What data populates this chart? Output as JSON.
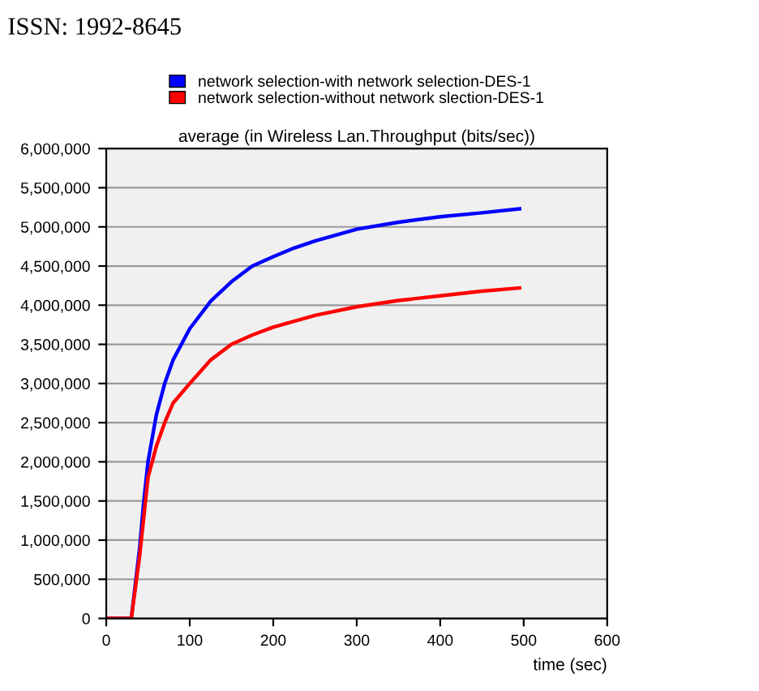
{
  "chart_data": {
    "type": "line",
    "title": "average (in Wireless Lan.Throughput (bits/sec))",
    "xlabel": "time (sec)",
    "annotations": [
      "ISSN: 1992-8645"
    ],
    "series": [
      {
        "name": "network selection-with network selection-DES-1",
        "color": "#0000ff",
        "x": [
          0,
          30,
          40,
          45,
          50,
          60,
          70,
          80,
          100,
          125,
          150,
          175,
          200,
          225,
          250,
          300,
          350,
          400,
          450,
          495
        ],
        "values": [
          0,
          0,
          900000,
          1500000,
          2000000,
          2600000,
          3000000,
          3300000,
          3700000,
          4050000,
          4300000,
          4500000,
          4620000,
          4730000,
          4820000,
          4970000,
          5060000,
          5130000,
          5180000,
          5230000
        ]
      },
      {
        "name": "network selection-without network slection-DES-1",
        "color": "#ff0000",
        "x": [
          0,
          30,
          40,
          45,
          50,
          60,
          70,
          80,
          100,
          125,
          150,
          175,
          200,
          250,
          300,
          350,
          400,
          450,
          495
        ],
        "values": [
          0,
          0,
          800000,
          1300000,
          1800000,
          2200000,
          2500000,
          2750000,
          3000000,
          3300000,
          3500000,
          3620000,
          3720000,
          3870000,
          3980000,
          4060000,
          4120000,
          4180000,
          4220000
        ]
      }
    ],
    "xlim": [
      0,
      600
    ],
    "xticks": [
      0,
      100,
      200,
      300,
      400,
      500,
      600
    ],
    "ylim": [
      0,
      6000000
    ],
    "yticks": [
      {
        "value": 0,
        "label": "0"
      },
      {
        "value": 500000,
        "label": "500,000"
      },
      {
        "value": 1000000,
        "label": "1,000,000"
      },
      {
        "value": 1500000,
        "label": "1,500,000"
      },
      {
        "value": 2000000,
        "label": "2,000,000"
      },
      {
        "value": 2500000,
        "label": "2,500,000"
      },
      {
        "value": 3000000,
        "label": "3,000,000"
      },
      {
        "value": 3500000,
        "label": "3,500,000"
      },
      {
        "value": 4000000,
        "label": "4,000,000"
      },
      {
        "value": 4500000,
        "label": "4,500,000"
      },
      {
        "value": 5000000,
        "label": "5,000,000"
      },
      {
        "value": 5500000,
        "label": "5,500,000"
      },
      {
        "value": 6000000,
        "label": "6,000,000"
      }
    ],
    "grid": "y",
    "legend": "top",
    "marker": "none",
    "line_style": "solid"
  }
}
